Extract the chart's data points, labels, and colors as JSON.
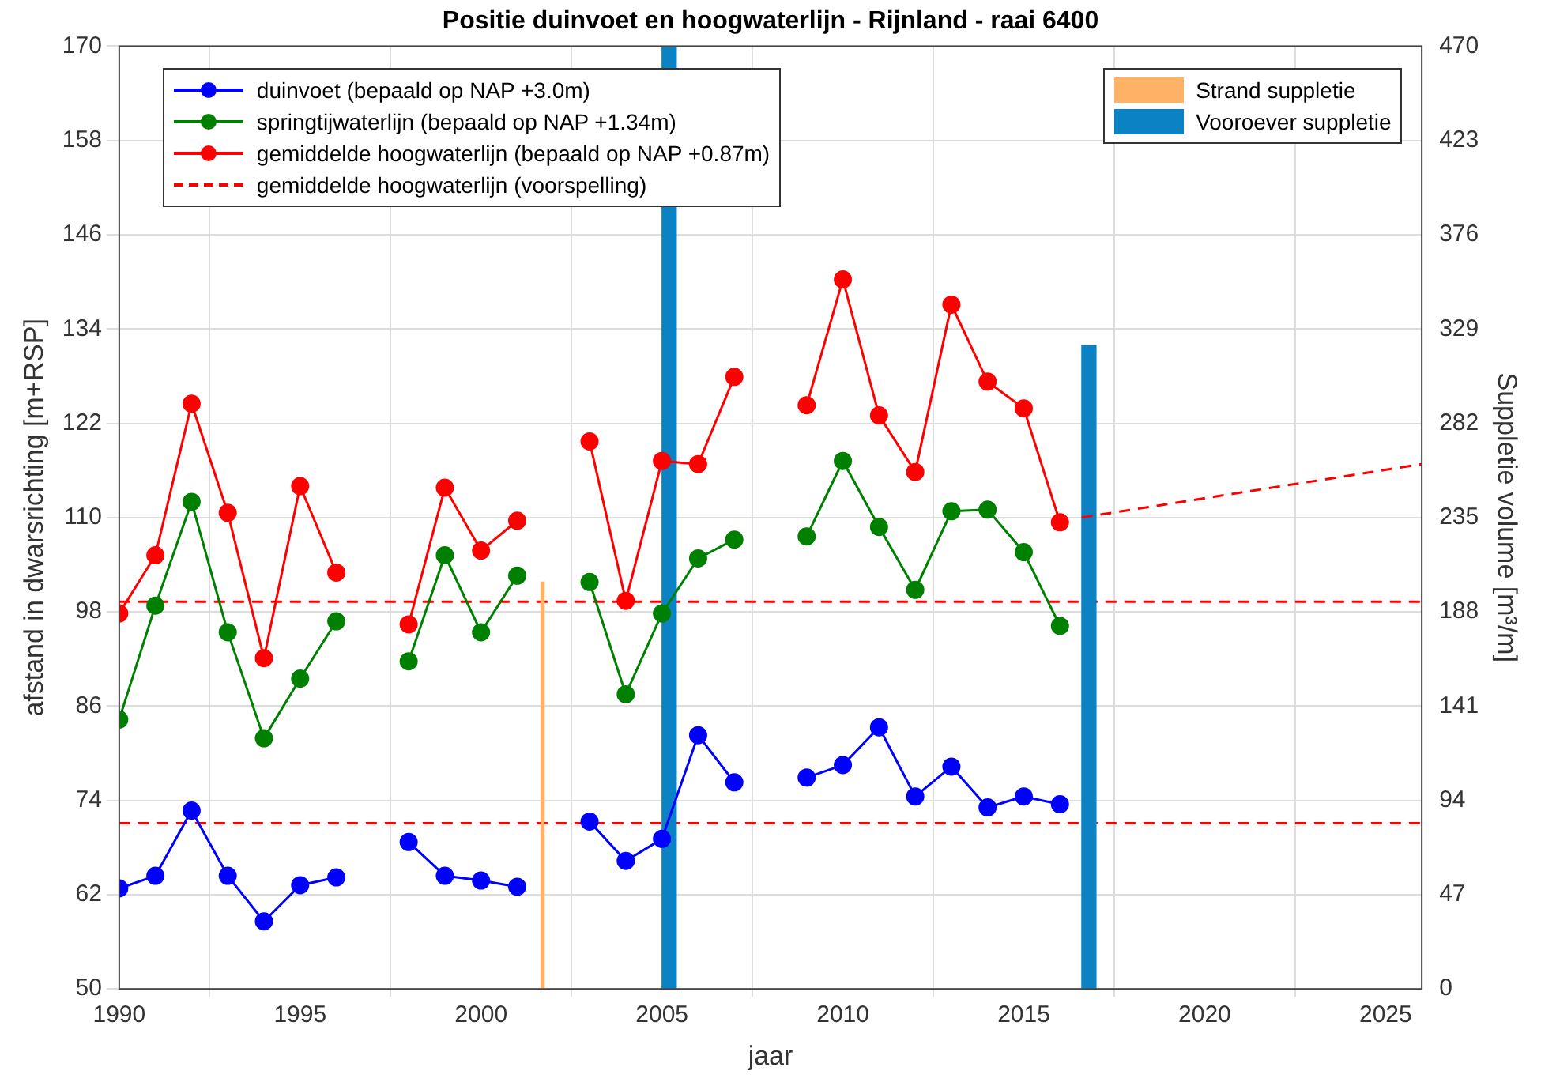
{
  "chart_data": {
    "type": "line",
    "title": "Positie duinvoet en hoogwaterlijn - Rijnland - raai 6400",
    "xlabel": "jaar",
    "ylabel": "afstand in dwarsrichting [m+RSP]",
    "y2label": "Suppletie volume [m³/m]",
    "x": [
      1990,
      1991,
      1992,
      1993,
      1994,
      1995,
      1996,
      1997,
      1998,
      1999,
      2000,
      2001,
      2002,
      2003,
      2004,
      2005,
      2006,
      2007,
      2008,
      2009,
      2010,
      2011,
      2012,
      2013,
      2014,
      2015,
      2016
    ],
    "series": [
      {
        "name": "duinvoet (bepaald op NAP +3.0m)",
        "color": "#0000ff",
        "values": [
          62.8,
          64.4,
          72.7,
          64.4,
          58.6,
          63.2,
          64.2,
          null,
          68.7,
          64.4,
          63.8,
          63.0,
          null,
          71.3,
          66.3,
          69.1,
          82.3,
          76.3,
          null,
          76.9,
          78.5,
          83.3,
          74.5,
          78.3,
          73.1,
          74.5,
          73.5
        ]
      },
      {
        "name": "springtijwaterlijn (bepaald op NAP +1.34m)",
        "color": "#008000",
        "values": [
          84.3,
          98.8,
          112.0,
          95.4,
          81.9,
          89.5,
          96.8,
          null,
          91.7,
          105.2,
          95.4,
          102.6,
          null,
          101.8,
          87.5,
          97.8,
          104.8,
          107.2,
          null,
          107.6,
          117.2,
          108.8,
          100.8,
          110.8,
          111.0,
          105.6,
          96.2
        ]
      },
      {
        "name": "gemiddelde hoogwaterlijn (bepaald op NAP +0.87m)",
        "color": "#ff0000",
        "values": [
          97.8,
          105.2,
          124.5,
          110.6,
          92.1,
          114.0,
          103.0,
          null,
          96.4,
          113.8,
          105.8,
          109.6,
          null,
          119.7,
          99.4,
          117.2,
          116.8,
          127.9,
          null,
          124.3,
          140.3,
          123.0,
          115.8,
          137.1,
          127.3,
          123.9,
          109.4
        ]
      },
      {
        "name": "gemiddelde hoogwaterlijn (voorspelling)",
        "color": "#ff0000",
        "line_style": "dashed",
        "marker": "none",
        "x": [
          2016.6,
          2026
        ],
        "values": [
          110.0,
          116.8
        ]
      },
      {
        "name": "Strand suppletie",
        "type": "bar",
        "axis": "y2",
        "color": "#ffb266",
        "x": [
          2001.7
        ],
        "values": [
          202.8
        ]
      },
      {
        "name": "Vooroever suppletie",
        "type": "bar",
        "axis": "y2",
        "color": "#0a82c4",
        "x": [
          2005.2,
          2016.8
        ],
        "values": [
          470,
          320.7
        ]
      }
    ],
    "ref_lines": [
      {
        "axis": "y",
        "value": 99.3,
        "color": "#ff0000",
        "line_style": "dashed"
      },
      {
        "axis": "y",
        "value": 71.1,
        "color": "#ff0000",
        "line_style": "dashed"
      }
    ],
    "xlim": [
      1990,
      2026
    ],
    "xticks": [
      1990,
      1995,
      2000,
      2005,
      2010,
      2015,
      2020,
      2025
    ],
    "ylim": [
      50,
      170
    ],
    "yticks": [
      50,
      62,
      74,
      86,
      98,
      110,
      122,
      134,
      146,
      158,
      170
    ],
    "y2lim": [
      0,
      470
    ],
    "y2ticks": [
      0,
      47,
      94,
      141,
      188,
      235,
      282,
      329,
      376,
      423,
      470
    ],
    "grid": true,
    "legend": "top",
    "marker": "circle"
  }
}
